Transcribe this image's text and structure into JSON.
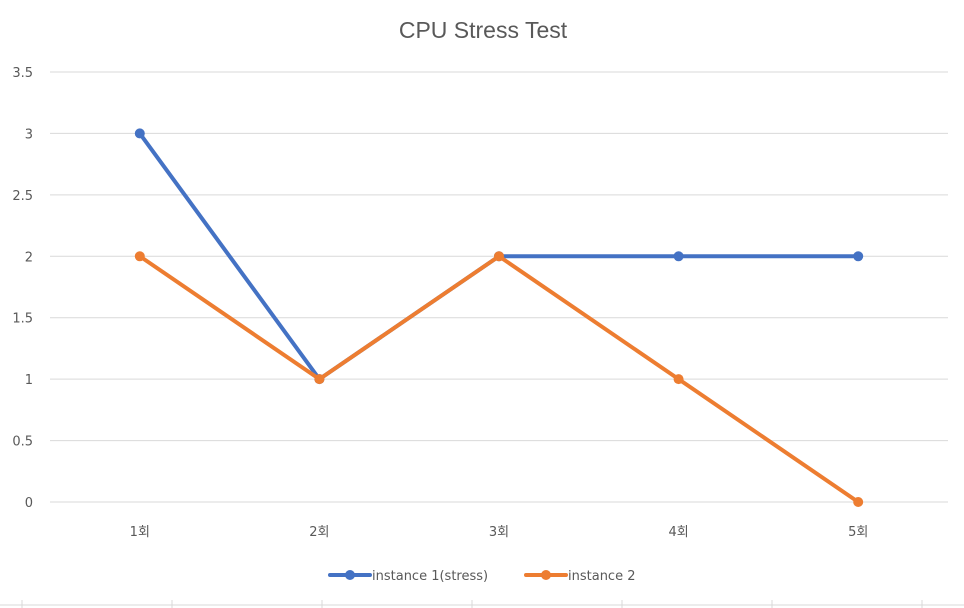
{
  "chart_data": {
    "type": "line",
    "title": "CPU Stress Test",
    "xlabel": "",
    "ylabel": "",
    "categories": [
      "1회",
      "2회",
      "3회",
      "4회",
      "5회"
    ],
    "ylim": [
      0,
      3.5
    ],
    "yticks": [
      "0",
      "0.5",
      "1",
      "1.5",
      "2",
      "2.5",
      "3",
      "3.5"
    ],
    "grid": true,
    "legend_position": "bottom",
    "series": [
      {
        "name": "instance 1(stress)",
        "values": [
          3,
          1,
          2,
          2,
          2
        ],
        "color": "#4472c4"
      },
      {
        "name": "instance 2",
        "values": [
          2,
          1,
          2,
          1,
          0
        ],
        "color": "#ed7d31"
      }
    ]
  }
}
